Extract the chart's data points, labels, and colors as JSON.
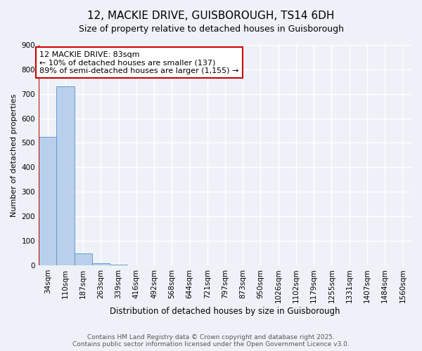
{
  "title": "12, MACKIE DRIVE, GUISBOROUGH, TS14 6DH",
  "subtitle": "Size of property relative to detached houses in Guisborough",
  "xlabel": "Distribution of detached houses by size in Guisborough",
  "ylabel": "Number of detached properties",
  "categories": [
    "34sqm",
    "110sqm",
    "187sqm",
    "263sqm",
    "339sqm",
    "416sqm",
    "492sqm",
    "568sqm",
    "644sqm",
    "721sqm",
    "797sqm",
    "873sqm",
    "950sqm",
    "1026sqm",
    "1102sqm",
    "1179sqm",
    "1255sqm",
    "1331sqm",
    "1407sqm",
    "1484sqm",
    "1560sqm"
  ],
  "values": [
    525,
    730,
    47,
    8,
    3,
    0,
    0,
    0,
    0,
    0,
    0,
    0,
    0,
    0,
    0,
    0,
    0,
    0,
    0,
    0,
    0
  ],
  "bar_color": "#b8d0eb",
  "bar_edge_color": "#5b8fc8",
  "property_line_color": "#cc0000",
  "annotation_text": "12 MACKIE DRIVE: 83sqm\n← 10% of detached houses are smaller (137)\n89% of semi-detached houses are larger (1,155) →",
  "annotation_box_color": "#cc0000",
  "ylim": [
    0,
    900
  ],
  "yticks": [
    0,
    100,
    200,
    300,
    400,
    500,
    600,
    700,
    800,
    900
  ],
  "footer_line1": "Contains HM Land Registry data © Crown copyright and database right 2025.",
  "footer_line2": "Contains public sector information licensed under the Open Government Licence v3.0.",
  "bg_color": "#eef2f8",
  "grid_color": "#ffffff",
  "title_fontsize": 11,
  "subtitle_fontsize": 9,
  "xlabel_fontsize": 8.5,
  "ylabel_fontsize": 8,
  "tick_fontsize": 7.5,
  "annotation_fontsize": 8,
  "footer_fontsize": 6.5
}
